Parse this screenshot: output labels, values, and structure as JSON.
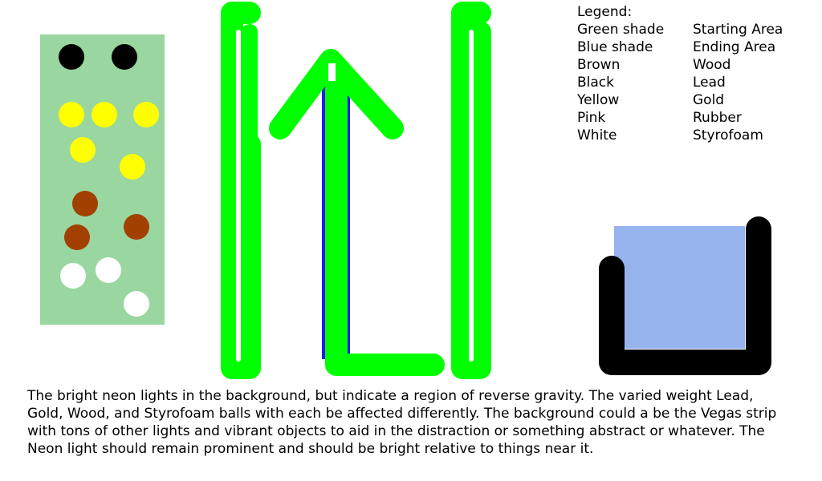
{
  "legend": {
    "title": "Legend:",
    "items": [
      {
        "key": "Green shade",
        "value": "Starting Area"
      },
      {
        "key": "Blue shade",
        "value": "Ending Area"
      },
      {
        "key": "Brown",
        "value": "Wood"
      },
      {
        "key": "Black",
        "value": "Lead"
      },
      {
        "key": "Yellow",
        "value": "Gold"
      },
      {
        "key": "Pink",
        "value": "Rubber"
      },
      {
        "key": "White",
        "value": "Styrofoam"
      }
    ]
  },
  "description": [
    "The bright neon lights in the background, but indicate a region of reverse gravity. The varied weight Lead,",
    "Gold, Wood, and Styrofoam balls with each be affected differently. The background could a be the Vegas strip",
    "with tons of other lights and vibrant objects to aid in the distraction or something abstract or whatever. The",
    "Neon light should remain prominent and should be bright relative to things near it."
  ],
  "colors": {
    "starting_area": "#99d6a0",
    "ending_area": "#97b3ee",
    "neon": "#00ff00",
    "blue_stripe": "#1a1aff",
    "lead": "#000000",
    "gold": "#ffff00",
    "wood": "#a14000",
    "styrofoam": "#ffffff",
    "container": "#000000"
  }
}
